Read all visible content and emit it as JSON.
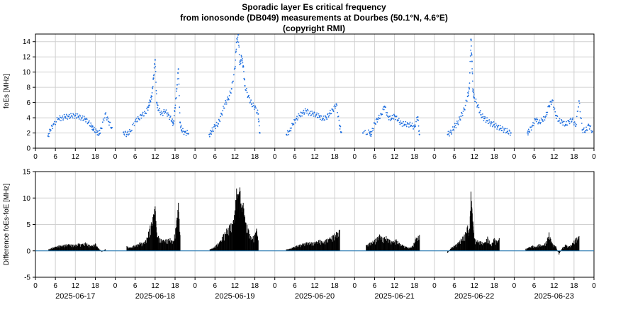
{
  "page": {
    "title_lines": [
      "Sporadic layer Es critical frequency",
      "from ionosonde (DB049) measurements at Dourbes (50.1°N, 4.6°E)",
      "(copyright RMI)"
    ]
  },
  "colors": {
    "scatter": "#1f6fe0",
    "zero_line": "#1f77b4",
    "bars": "#000000",
    "grid": "#d0d0d0"
  },
  "chart_data": [
    {
      "type": "scatter",
      "ylabel": "foEs [MHz]",
      "ylim": [
        0,
        15
      ],
      "yticks": [
        0,
        2,
        4,
        6,
        8,
        10,
        12,
        14
      ],
      "xlim": [
        0,
        168
      ],
      "xtick_hours": [
        0,
        6,
        12,
        18
      ],
      "grid": true,
      "days": [
        {
          "date": "2025-06-17",
          "segments": [
            {
              "hours": [
                3.8,
                4.5,
                5.5,
                7,
                8,
                9,
                10,
                11,
                12,
                13,
                14,
                15,
                16,
                17,
                17.5,
                18.5,
                19.2,
                19.8,
                21,
                22,
                23
              ],
              "values": [
                1.6,
                2.4,
                3.2,
                3.9,
                4.0,
                4.1,
                4.2,
                4.2,
                4.3,
                4.1,
                4.0,
                3.8,
                3.4,
                2.8,
                2.5,
                2.1,
                1.9,
                2.6,
                4.5,
                3.5,
                2.7
              ]
            }
          ]
        },
        {
          "date": "2025-06-18",
          "segments": [
            {
              "hours": [
                2.5,
                3.5,
                4.5,
                6,
                7,
                8,
                9,
                10,
                10.5,
                11,
                11.5,
                12,
                12.5,
                13,
                14,
                15,
                16,
                17,
                17.5,
                18,
                18.5,
                19,
                19.5,
                20,
                21,
                22
              ],
              "values": [
                2.1,
                1.8,
                2.2,
                3.5,
                3.9,
                4.3,
                4.6,
                5.4,
                6.2,
                6.8,
                9.2,
                11.6,
                6.0,
                5.0,
                4.6,
                4.8,
                4.4,
                3.6,
                3.2,
                5.3,
                7.8,
                10.4,
                3.4,
                2.3,
                2.1,
                1.9
              ]
            }
          ]
        },
        {
          "date": "2025-06-19",
          "segments": [
            {
              "hours": [
                4.3,
                5,
                6,
                7,
                8,
                9,
                10,
                11,
                12,
                12.5,
                13,
                13.5,
                14,
                14.5,
                15,
                16,
                17,
                18,
                19,
                19.5
              ],
              "values": [
                1.8,
                2.2,
                2.9,
                3.2,
                4.5,
                5.8,
                6.5,
                7.8,
                10.5,
                13.9,
                14.9,
                11.0,
                12.0,
                10.8,
                8.2,
                6.8,
                5.8,
                5.4,
                4.5,
                2.0
              ]
            }
          ]
        },
        {
          "date": "2025-06-20",
          "segments": [
            {
              "hours": [
                3.5,
                4.5,
                5.5,
                6.5,
                7.5,
                8.5,
                9.5,
                10.5,
                11.5,
                12.5,
                13.5,
                14.5,
                15.5,
                16.5,
                17.5,
                18.5,
                19.5,
                20
              ],
              "values": [
                1.8,
                2.3,
                3.2,
                3.9,
                4.3,
                4.7,
                4.9,
                4.6,
                4.5,
                4.4,
                4.1,
                3.9,
                4.0,
                4.6,
                5.0,
                5.8,
                3.0,
                2.1
              ]
            }
          ]
        },
        {
          "date": "2025-06-21",
          "segments": [
            {
              "hours": [
                2.5,
                4.5,
                5,
                6,
                7,
                8,
                9,
                10,
                11,
                12,
                13,
                14,
                15,
                16,
                17,
                18,
                19,
                19.5
              ],
              "values": [
                2.0,
                2.1,
                1.8,
                3.3,
                3.8,
                4.4,
                5.5,
                4.2,
                3.8,
                4.3,
                3.7,
                3.3,
                3.1,
                3.2,
                3.0,
                2.8,
                4.1,
                1.8
              ]
            }
          ]
        },
        {
          "date": "2025-06-22",
          "segments": [
            {
              "hours": [
                4,
                5,
                6,
                7,
                8,
                9,
                10,
                10.5,
                11,
                11.3,
                11.6,
                12,
                13,
                14,
                15,
                16,
                17,
                18,
                19,
                20,
                21,
                22,
                23
              ],
              "values": [
                1.8,
                2.1,
                2.8,
                3.3,
                4.2,
                5.1,
                6.8,
                7.8,
                14.3,
                11.4,
                7.5,
                6.6,
                5.6,
                4.4,
                3.9,
                3.6,
                3.2,
                3.1,
                2.8,
                2.6,
                2.4,
                2.2,
                2.0
              ]
            }
          ]
        },
        {
          "date": "2025-06-23",
          "segments": [
            {
              "hours": [
                4,
                4.5,
                5.5,
                6.5,
                7.5,
                8.5,
                9.5,
                10.5,
                11.5,
                12.5,
                13.5,
                14.5,
                15.5,
                16.5,
                17.5,
                18.5,
                19.5,
                20.5,
                21.5,
                22.5,
                23.5
              ],
              "values": [
                2.0,
                2.2,
                3.0,
                3.8,
                3.4,
                3.7,
                4.2,
                5.6,
                6.3,
                4.3,
                3.6,
                3.4,
                3.1,
                3.5,
                3.8,
                2.9,
                6.2,
                2.4,
                2.3,
                3.0,
                2.2
              ]
            }
          ]
        }
      ]
    },
    {
      "type": "bar",
      "ylabel": "Difference foEs-foE [MHz]",
      "ylim": [
        -5,
        15
      ],
      "yticks": [
        -5,
        0,
        5,
        10,
        15
      ],
      "xlim": [
        0,
        168
      ],
      "xtick_hours": [
        0,
        6,
        12,
        18
      ],
      "grid": true,
      "day_labels": [
        "2025-06-17",
        "2025-06-18",
        "2025-06-19",
        "2025-06-20",
        "2025-06-21",
        "2025-06-22",
        "2025-06-23"
      ],
      "days": [
        {
          "hours": [
            4,
            5,
            6,
            7,
            8,
            9,
            10,
            11,
            12,
            13,
            14,
            15,
            16,
            17,
            18,
            19,
            20,
            21
          ],
          "values": [
            0.3,
            0.6,
            0.8,
            1.0,
            1.1,
            1.2,
            1.3,
            1.2,
            1.2,
            1.4,
            1.3,
            1.6,
            1.2,
            1.0,
            1.4,
            0.5,
            -0.2,
            0.3
          ]
        },
        {
          "hours": [
            3.5,
            4.5,
            5.5,
            6.5,
            7.5,
            8.5,
            9.5,
            10.5,
            11.5,
            12,
            12.5,
            13.5,
            14.5,
            15.5,
            16.5,
            17.5,
            18.5,
            19,
            19.5
          ],
          "values": [
            0.9,
            0.6,
            1.0,
            1.2,
            1.6,
            1.5,
            2.5,
            4.8,
            6.9,
            8.4,
            3.5,
            2.3,
            2.1,
            2.2,
            2.4,
            1.8,
            5.8,
            9.1,
            3.0
          ]
        },
        {
          "hours": [
            4.5,
            5.5,
            6.5,
            7.5,
            8.5,
            9.5,
            10.5,
            11.5,
            12,
            12.5,
            13,
            13.5,
            14,
            14.5,
            15,
            16,
            17,
            18,
            18.5,
            19
          ],
          "values": [
            0.3,
            0.6,
            1.2,
            1.8,
            3.1,
            4.2,
            5.0,
            5.7,
            7.5,
            11.8,
            10.5,
            12.0,
            8.2,
            9.1,
            6.4,
            4.2,
            2.6,
            3.1,
            4.2,
            2.0
          ]
        },
        {
          "hours": [
            3.5,
            4.5,
            5.5,
            6.5,
            7.5,
            8.5,
            9.5,
            10.5,
            11.5,
            12.5,
            13.5,
            14.5,
            15.5,
            16.5,
            17.5,
            18.5,
            19.5
          ],
          "values": [
            0.3,
            0.4,
            0.7,
            1.0,
            1.2,
            1.4,
            1.6,
            1.7,
            1.6,
            1.8,
            2.1,
            1.8,
            2.2,
            2.5,
            3.0,
            3.6,
            4.0
          ]
        },
        {
          "hours": [
            3.5,
            4.5,
            5.5,
            6.5,
            7.5,
            8.5,
            9.5,
            10.5,
            11.5,
            12.5,
            13.5,
            14.5,
            15.5,
            16.5,
            17.5,
            18.5,
            19.5
          ],
          "values": [
            1.1,
            1.5,
            1.9,
            2.4,
            3.1,
            2.5,
            2.8,
            2.1,
            1.8,
            2.2,
            1.5,
            1.1,
            0.8,
            0.6,
            1.0,
            2.5,
            3.0
          ]
        },
        {
          "hours": [
            4,
            5,
            6,
            7,
            8,
            9,
            10,
            10.5,
            11,
            11.3,
            11.6,
            12,
            13,
            14,
            15,
            16,
            17,
            18,
            19,
            19.5
          ],
          "values": [
            -0.4,
            0.6,
            1.0,
            1.5,
            2.3,
            3.1,
            4.8,
            2.8,
            11.2,
            8.0,
            5.4,
            2.4,
            2.0,
            1.8,
            1.5,
            2.7,
            1.2,
            2.4,
            1.8,
            2.4
          ]
        },
        {
          "hours": [
            3.5,
            4.5,
            5.5,
            6.5,
            7.5,
            8.5,
            9.5,
            10.5,
            11.5,
            12.5,
            13.5,
            14.5,
            15.5,
            16.5,
            17.5,
            18.5,
            19.5
          ],
          "values": [
            0.4,
            0.7,
            1.0,
            0.8,
            1.3,
            1.0,
            1.6,
            3.5,
            1.4,
            0.9,
            -0.7,
            0.6,
            1.2,
            0.8,
            1.5,
            2.4,
            2.8
          ]
        }
      ]
    }
  ]
}
